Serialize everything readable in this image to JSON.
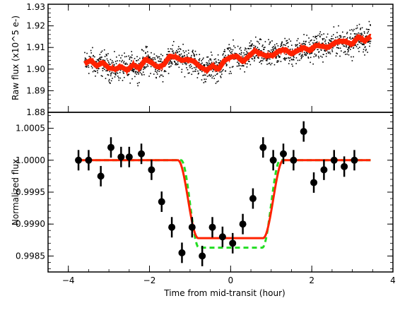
{
  "chart_data": [
    {
      "type": "scatter",
      "panel": "top",
      "ylabel": "Raw flux (x10^5 e-)",
      "ylim": [
        1.88,
        1.93
      ],
      "xlim": [
        -4.5,
        4.0
      ],
      "yticks": [
        {
          "value": 1.88,
          "label": "1.88"
        },
        {
          "value": 1.89,
          "label": "1.89"
        },
        {
          "value": 1.9,
          "label": "1.90"
        },
        {
          "value": 1.91,
          "label": "1.91"
        },
        {
          "value": 1.92,
          "label": "1.92"
        },
        {
          "value": 1.93,
          "label": "1.93"
        }
      ],
      "raw_points_description_series": {
        "x_range": [
          -3.6,
          3.45
        ],
        "trend_start": 1.899,
        "trend_end": 1.914,
        "scatter_half_width": 0.009
      },
      "model_line": {
        "color": "#ff2200",
        "x": [
          -3.6,
          -3.45,
          -3.3,
          -3.15,
          -3.0,
          -2.85,
          -2.7,
          -2.55,
          -2.4,
          -2.25,
          -2.1,
          -1.95,
          -1.8,
          -1.65,
          -1.5,
          -1.35,
          -1.2,
          -1.05,
          -0.9,
          -0.75,
          -0.6,
          -0.45,
          -0.3,
          -0.15,
          0.0,
          0.15,
          0.3,
          0.45,
          0.6,
          0.75,
          0.9,
          1.05,
          1.2,
          1.35,
          1.5,
          1.65,
          1.8,
          1.95,
          2.1,
          2.25,
          2.4,
          2.55,
          2.7,
          2.85,
          3.0,
          3.15,
          3.3,
          3.45
        ],
        "y": [
          1.9025,
          1.904,
          1.9015,
          1.903,
          1.9005,
          1.9,
          1.901,
          1.8995,
          1.902,
          1.9005,
          1.9045,
          1.903,
          1.901,
          1.902,
          1.906,
          1.9055,
          1.904,
          1.9045,
          1.9035,
          1.901,
          1.8995,
          1.9015,
          1.9,
          1.904,
          1.9055,
          1.906,
          1.9035,
          1.906,
          1.9085,
          1.907,
          1.906,
          1.9065,
          1.9085,
          1.909,
          1.907,
          1.9085,
          1.91,
          1.9085,
          1.911,
          1.9105,
          1.91,
          1.912,
          1.913,
          1.9125,
          1.9115,
          1.915,
          1.913,
          1.915
        ]
      }
    },
    {
      "type": "scatter",
      "panel": "bottom",
      "xlabel": "Time from mid-transit (hour)",
      "ylabel": "Normalized flux",
      "xlim": [
        -4.5,
        4.0
      ],
      "ylim": [
        0.99825,
        1.00075
      ],
      "xticks": [
        {
          "value": -4,
          "label": "−4"
        },
        {
          "value": -2,
          "label": "−2"
        },
        {
          "value": 0,
          "label": "0"
        },
        {
          "value": 2,
          "label": "2"
        },
        {
          "value": 4,
          "label": "4"
        }
      ],
      "yticks": [
        {
          "value": 0.9985,
          "label": "0.9985"
        },
        {
          "value": 0.999,
          "label": "0.9990"
        },
        {
          "value": 0.9995,
          "label": "0.9995"
        },
        {
          "value": 1.0,
          "label": "1.0000"
        },
        {
          "value": 1.0005,
          "label": "1.0005"
        }
      ],
      "points": {
        "x": [
          -3.75,
          -3.5,
          -3.2,
          -2.95,
          -2.7,
          -2.5,
          -2.2,
          -1.95,
          -1.7,
          -1.45,
          -1.2,
          -0.95,
          -0.7,
          -0.45,
          -0.2,
          0.05,
          0.3,
          0.55,
          0.8,
          1.05,
          1.3,
          1.55,
          1.8,
          2.05,
          2.3,
          2.55,
          2.8,
          3.05
        ],
        "y": [
          1.0,
          1.0,
          0.99975,
          1.0002,
          1.00005,
          1.00005,
          1.0001,
          0.99985,
          0.99935,
          0.99895,
          0.99855,
          0.99895,
          0.9985,
          0.99895,
          0.9988,
          0.9987,
          0.999,
          0.9994,
          1.0002,
          1.0,
          1.0001,
          1.0,
          1.00045,
          0.99965,
          0.99985,
          1.0,
          0.9999,
          1.0
        ],
        "yerr": 0.00016,
        "color": "#000000"
      },
      "best_fit": {
        "color": "#ff2200",
        "depth": 0.00122,
        "t14_half": 1.05,
        "ingress": 0.25,
        "x_range": [
          -3.75,
          3.45
        ]
      },
      "alt_fit": {
        "color": "#22dd22",
        "dashed": true,
        "depth": 0.00137,
        "t14_half": 1.0,
        "ingress": 0.22,
        "x_range": [
          -3.75,
          3.45
        ]
      }
    }
  ]
}
